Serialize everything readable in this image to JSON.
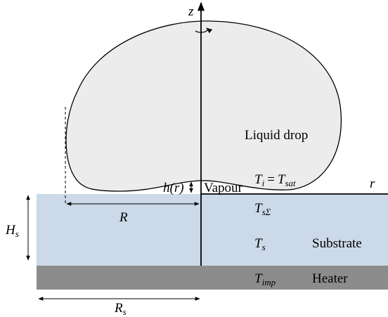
{
  "axes": {
    "z": "z",
    "r": "r"
  },
  "regions": {
    "drop": "Liquid drop",
    "vapour": "Vapour",
    "substrate": "Substrate",
    "heater": "Heater"
  },
  "labels": {
    "film_height": "h(r)",
    "interface_temp": {
      "left": {
        "base": "T",
        "sub": "i"
      },
      "operator": "=",
      "right": {
        "base": "T",
        "sub": "sat"
      }
    },
    "surface_temp": {
      "base": "T",
      "sub": "sΣ"
    },
    "substrate_temp": {
      "base": "T",
      "sub": "s"
    },
    "heater_temp": {
      "base": "T",
      "sub": "imp"
    },
    "drop_radius": "R",
    "substrate_height": {
      "base": "H",
      "sub": "s"
    },
    "substrate_radius": {
      "base": "R",
      "sub": "s"
    }
  }
}
